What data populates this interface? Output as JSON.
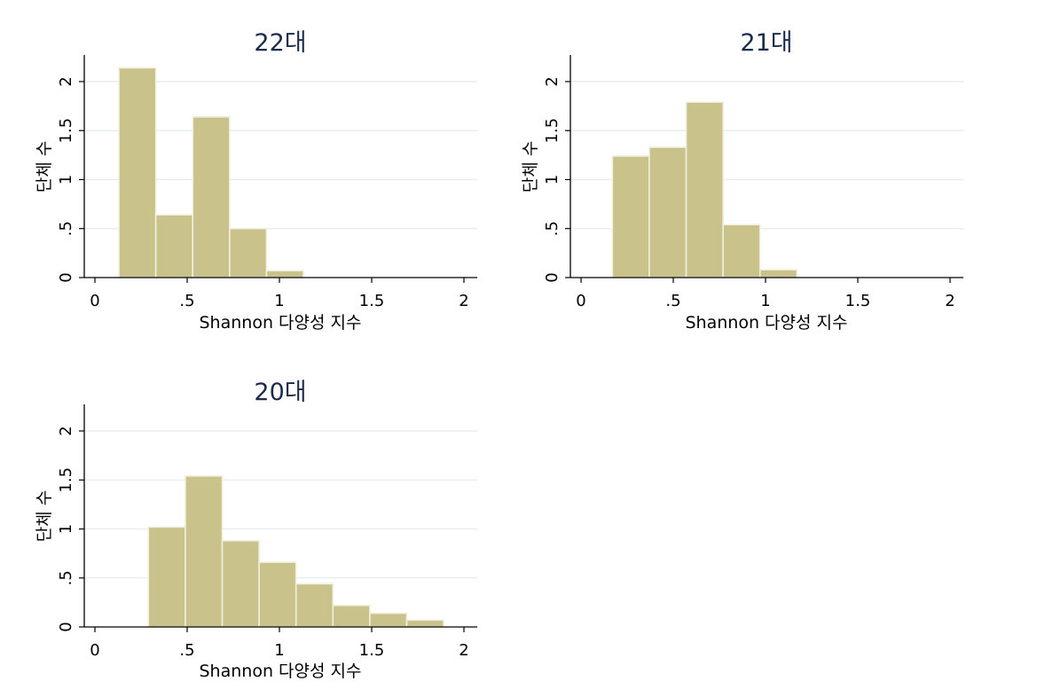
{
  "chart_data": [
    {
      "type": "bar",
      "title": "22대",
      "xlabel": "Shannon 다양성 지수",
      "ylabel": "단체 수",
      "xlim": [
        0,
        2
      ],
      "ylim": [
        0,
        2.2
      ],
      "xticks": [
        {
          "value": 0,
          "label": "0"
        },
        {
          "value": 0.5,
          "label": ".5"
        },
        {
          "value": 1,
          "label": "1"
        },
        {
          "value": 1.5,
          "label": "1.5"
        },
        {
          "value": 2,
          "label": "2"
        }
      ],
      "yticks": [
        {
          "value": 0,
          "label": "0"
        },
        {
          "value": 0.5,
          "label": ".5"
        },
        {
          "value": 1,
          "label": "1"
        },
        {
          "value": 1.5,
          "label": "1.5"
        },
        {
          "value": 2,
          "label": "2"
        }
      ],
      "bins": [
        {
          "x0": 0.13,
          "x1": 0.33,
          "value": 2.14
        },
        {
          "x0": 0.33,
          "x1": 0.53,
          "value": 0.64
        },
        {
          "x0": 0.53,
          "x1": 0.73,
          "value": 1.64
        },
        {
          "x0": 0.73,
          "x1": 0.93,
          "value": 0.5
        },
        {
          "x0": 0.93,
          "x1": 1.13,
          "value": 0.07
        }
      ],
      "bar_color": "#c9c28a",
      "grid": true
    },
    {
      "type": "bar",
      "title": "21대",
      "xlabel": "Shannon 다양성 지수",
      "ylabel": "단체 수",
      "xlim": [
        0,
        2
      ],
      "ylim": [
        0,
        2.2
      ],
      "xticks": [
        {
          "value": 0,
          "label": "0"
        },
        {
          "value": 0.5,
          "label": ".5"
        },
        {
          "value": 1,
          "label": "1"
        },
        {
          "value": 1.5,
          "label": "1.5"
        },
        {
          "value": 2,
          "label": "2"
        }
      ],
      "yticks": [
        {
          "value": 0,
          "label": "0"
        },
        {
          "value": 0.5,
          "label": ".5"
        },
        {
          "value": 1,
          "label": "1"
        },
        {
          "value": 1.5,
          "label": "1.5"
        },
        {
          "value": 2,
          "label": "2"
        }
      ],
      "bins": [
        {
          "x0": 0.17,
          "x1": 0.37,
          "value": 1.24
        },
        {
          "x0": 0.37,
          "x1": 0.57,
          "value": 1.33
        },
        {
          "x0": 0.57,
          "x1": 0.77,
          "value": 1.79
        },
        {
          "x0": 0.77,
          "x1": 0.97,
          "value": 0.54
        },
        {
          "x0": 0.97,
          "x1": 1.17,
          "value": 0.08
        }
      ],
      "bar_color": "#c9c28a",
      "grid": true
    },
    {
      "type": "bar",
      "title": "20대",
      "xlabel": "Shannon 다양성 지수",
      "ylabel": "단체 수",
      "xlim": [
        0,
        2
      ],
      "ylim": [
        0,
        2.2
      ],
      "xticks": [
        {
          "value": 0,
          "label": "0"
        },
        {
          "value": 0.5,
          "label": ".5"
        },
        {
          "value": 1,
          "label": "1"
        },
        {
          "value": 1.5,
          "label": "1.5"
        },
        {
          "value": 2,
          "label": "2"
        }
      ],
      "yticks": [
        {
          "value": 0,
          "label": "0"
        },
        {
          "value": 0.5,
          "label": ".5"
        },
        {
          "value": 1,
          "label": "1"
        },
        {
          "value": 1.5,
          "label": "1.5"
        },
        {
          "value": 2,
          "label": "2"
        }
      ],
      "bins": [
        {
          "x0": 0.29,
          "x1": 0.49,
          "value": 1.02
        },
        {
          "x0": 0.49,
          "x1": 0.69,
          "value": 1.54
        },
        {
          "x0": 0.69,
          "x1": 0.89,
          "value": 0.88
        },
        {
          "x0": 0.89,
          "x1": 1.09,
          "value": 0.66
        },
        {
          "x0": 1.09,
          "x1": 1.29,
          "value": 0.44
        },
        {
          "x0": 1.29,
          "x1": 1.49,
          "value": 0.22
        },
        {
          "x0": 1.49,
          "x1": 1.69,
          "value": 0.14
        },
        {
          "x0": 1.69,
          "x1": 1.89,
          "value": 0.07
        }
      ],
      "bar_color": "#c9c28a",
      "grid": true
    }
  ]
}
